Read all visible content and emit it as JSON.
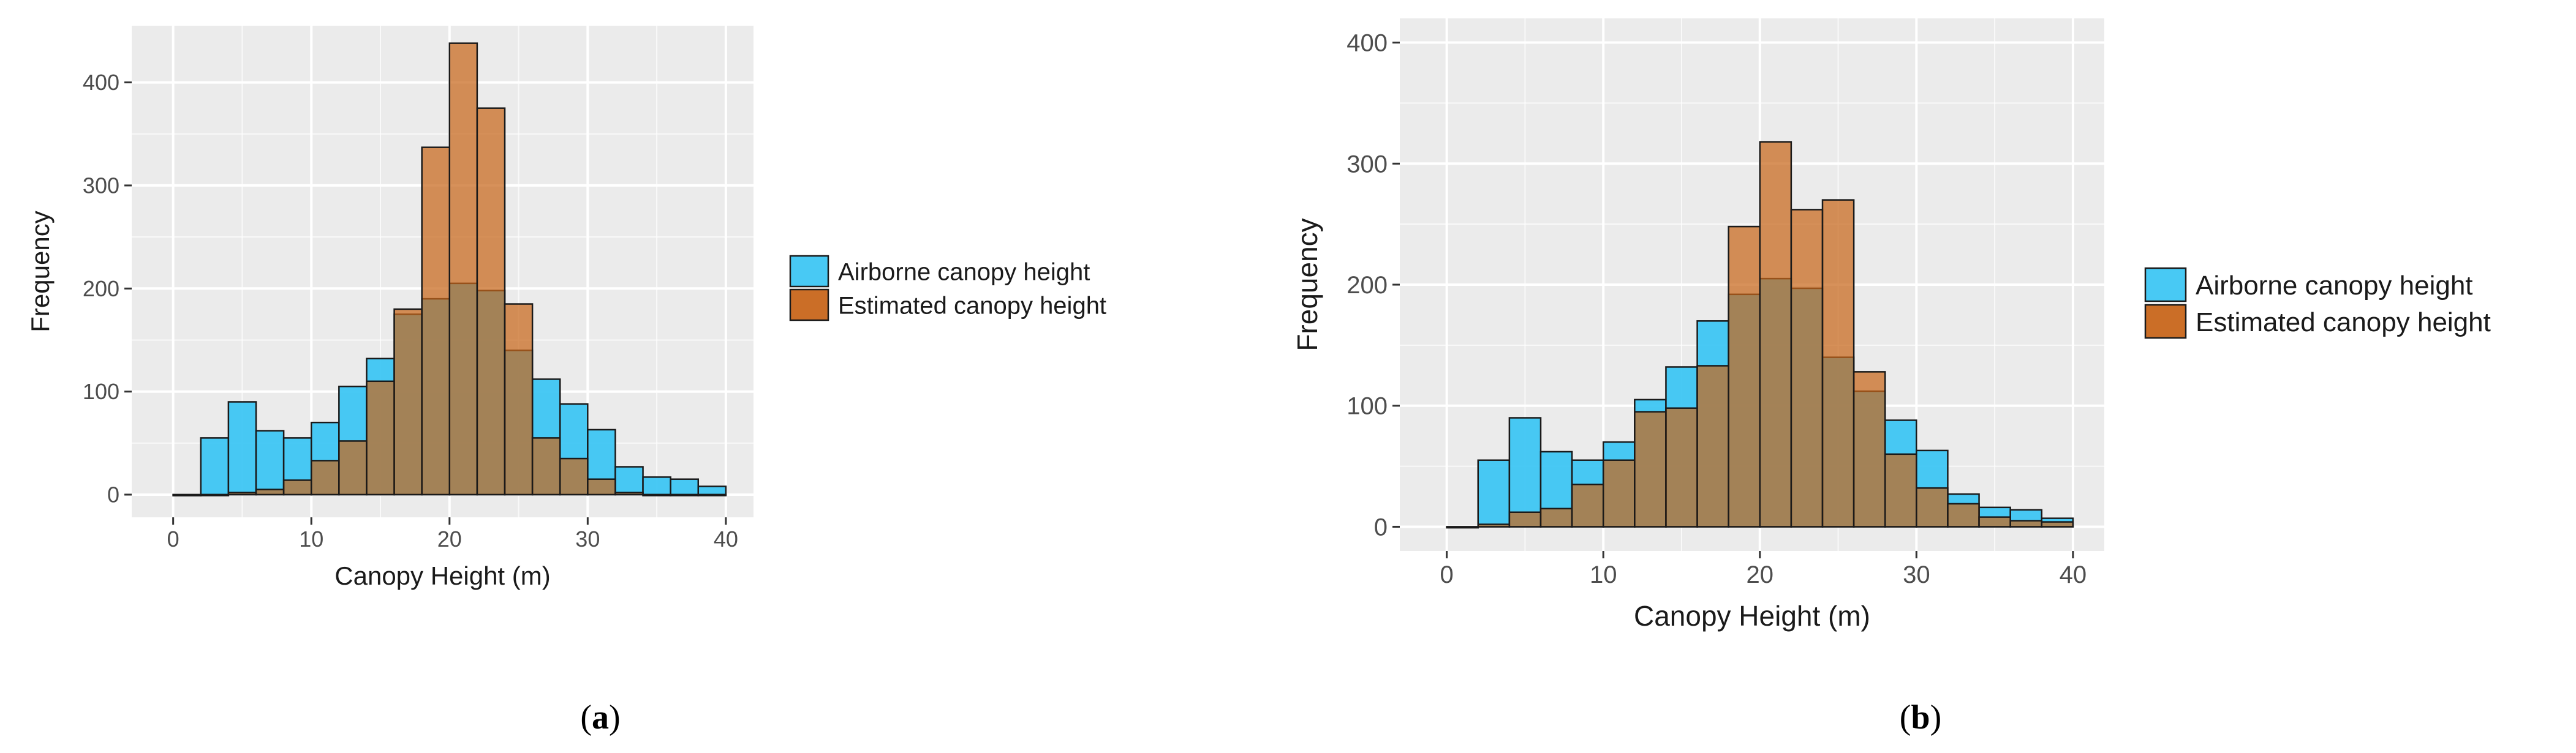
{
  "colors": {
    "airborne": "#3ec6f3",
    "estimated": "#c8661b",
    "panel_bg": "#ebebeb",
    "grid": "#ffffff"
  },
  "chart_data": [
    {
      "type": "bar",
      "panel": "a",
      "caption_open": "(",
      "caption_letter": "a",
      "caption_close": ")",
      "xlabel": "Canopy Height (m)",
      "ylabel": "Frequency",
      "xlim": [
        -3,
        42
      ],
      "ylim": [
        -22,
        455
      ],
      "xticks": [
        0,
        10,
        20,
        30,
        40
      ],
      "yticks": [
        0,
        100,
        200,
        300,
        400
      ],
      "bin_width": 2,
      "bin_starts": [
        0,
        2,
        4,
        6,
        8,
        10,
        12,
        14,
        16,
        18,
        20,
        22,
        24,
        26,
        28,
        30,
        32,
        34,
        36,
        38
      ],
      "grid": true,
      "legend_position": "right",
      "series": [
        {
          "name": "Airborne canopy height",
          "values": [
            0,
            55,
            90,
            62,
            55,
            70,
            105,
            132,
            175,
            190,
            205,
            198,
            140,
            112,
            88,
            63,
            27,
            17,
            15,
            8
          ]
        },
        {
          "name": "Estimated canopy height",
          "values": [
            0,
            0,
            2,
            5,
            14,
            33,
            52,
            110,
            180,
            337,
            438,
            375,
            185,
            55,
            35,
            15,
            2,
            0,
            0,
            0
          ]
        }
      ]
    },
    {
      "type": "bar",
      "panel": "b",
      "caption_open": "(",
      "caption_letter": "b",
      "caption_close": ")",
      "xlabel": "Canopy Height (m)",
      "ylabel": "Frequency",
      "xlim": [
        -3,
        42
      ],
      "ylim": [
        -20,
        420
      ],
      "xticks": [
        0,
        10,
        20,
        30,
        40
      ],
      "yticks": [
        0,
        100,
        200,
        300,
        400
      ],
      "bin_width": 2,
      "bin_starts": [
        0,
        2,
        4,
        6,
        8,
        10,
        12,
        14,
        16,
        18,
        20,
        22,
        24,
        26,
        28,
        30,
        32,
        34,
        36,
        38
      ],
      "grid": true,
      "legend_position": "right",
      "series": [
        {
          "name": "Airborne canopy height",
          "values": [
            0,
            55,
            90,
            62,
            55,
            70,
            105,
            132,
            170,
            192,
            205,
            197,
            140,
            112,
            88,
            63,
            27,
            16,
            14,
            7
          ]
        },
        {
          "name": "Estimated canopy height",
          "values": [
            0,
            2,
            12,
            15,
            35,
            55,
            95,
            98,
            133,
            248,
            318,
            262,
            270,
            128,
            60,
            32,
            19,
            8,
            5,
            4
          ]
        }
      ]
    }
  ]
}
